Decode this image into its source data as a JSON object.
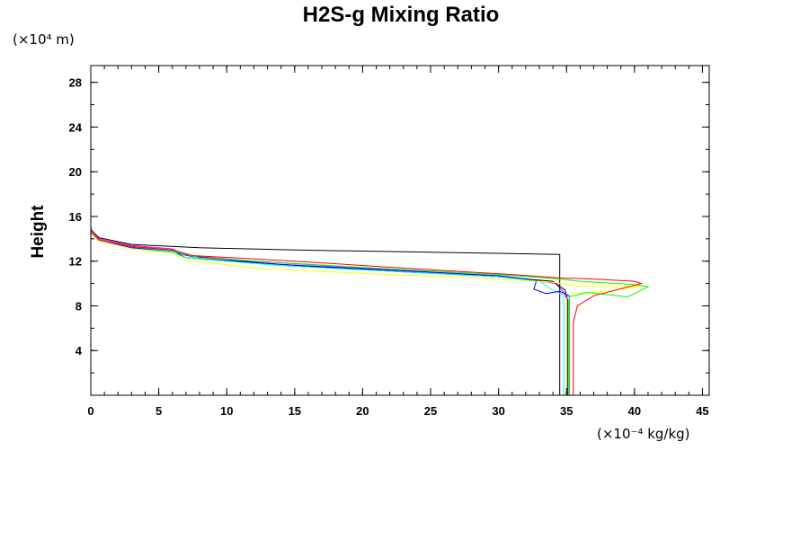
{
  "chart_data": {
    "type": "line",
    "title": "H2S-g Mixing Ratio",
    "ylabel": "Height",
    "xlabel": "",
    "x_unit": "(×10⁻⁴ kg/kg)",
    "y_unit": "(×10⁴ m)",
    "xlim": [
      0,
      45.5
    ],
    "ylim": [
      0,
      29.5
    ],
    "x_ticks": [
      0,
      5,
      10,
      15,
      20,
      25,
      30,
      35,
      40,
      45
    ],
    "x_tick_labels": [
      "0",
      "5",
      "10",
      "15",
      "20",
      "25",
      "30",
      "35",
      "40",
      "45"
    ],
    "y_ticks": [
      4,
      8,
      12,
      16,
      20,
      24,
      28
    ],
    "y_tick_labels": [
      "4",
      "8",
      "12",
      "16",
      "20",
      "24",
      "28"
    ],
    "x_minor_step": 1,
    "y_minor_step": 2,
    "grid": false,
    "legend": "none",
    "series": [
      {
        "color": "#ff00ff",
        "points": [
          [
            0,
            29.5
          ],
          [
            0,
            15.2
          ],
          [
            0.05,
            14.8
          ],
          [
            0.6,
            14.0
          ],
          [
            3,
            13.4
          ],
          [
            6,
            13.1
          ],
          [
            7,
            12.5
          ],
          [
            12,
            12.0
          ],
          [
            20,
            11.4
          ],
          [
            28,
            10.8
          ],
          [
            32,
            10.4
          ],
          [
            34.2,
            10.0
          ],
          [
            34.8,
            9.2
          ],
          [
            35,
            8.6
          ],
          [
            35,
            0
          ]
        ]
      },
      {
        "color": "#000000",
        "points": [
          [
            0,
            14.8
          ],
          [
            0.6,
            14.1
          ],
          [
            3,
            13.5
          ],
          [
            8,
            13.2
          ],
          [
            15,
            13.0
          ],
          [
            25,
            12.8
          ],
          [
            30,
            12.7
          ],
          [
            34.5,
            12.6
          ],
          [
            34.5,
            10.0
          ],
          [
            34.5,
            8.8
          ],
          [
            34.5,
            0
          ]
        ]
      },
      {
        "color": "#000000",
        "points": [
          [
            0,
            14.6
          ],
          [
            0.6,
            13.9
          ],
          [
            3,
            13.3
          ],
          [
            6,
            13.0
          ],
          [
            7,
            12.3
          ],
          [
            14,
            11.7
          ],
          [
            22,
            11.1
          ],
          [
            30,
            10.6
          ],
          [
            34,
            10.2
          ],
          [
            34.9,
            9.4
          ],
          [
            35.1,
            8.5
          ],
          [
            35.1,
            0
          ]
        ]
      },
      {
        "color": "#00ffff",
        "points": [
          [
            0,
            14.5
          ],
          [
            0.6,
            13.8
          ],
          [
            3,
            13.1
          ],
          [
            6,
            12.8
          ],
          [
            7,
            12.3
          ],
          [
            14,
            11.6
          ],
          [
            22,
            11.1
          ],
          [
            30,
            10.6
          ],
          [
            33,
            10.2
          ],
          [
            34,
            9.4
          ],
          [
            34.7,
            9.0
          ],
          [
            34.8,
            8.4
          ],
          [
            34.8,
            0
          ]
        ]
      },
      {
        "color": "#0000ff",
        "points": [
          [
            0,
            14.6
          ],
          [
            0.6,
            13.9
          ],
          [
            3,
            13.2
          ],
          [
            6,
            12.9
          ],
          [
            7.5,
            12.4
          ],
          [
            14,
            11.7
          ],
          [
            22,
            11.2
          ],
          [
            30,
            10.7
          ],
          [
            32.8,
            10.3
          ],
          [
            32.6,
            9.5
          ],
          [
            33.5,
            9.1
          ],
          [
            34.5,
            9.3
          ],
          [
            35.2,
            8.9
          ],
          [
            35.2,
            0
          ]
        ]
      },
      {
        "color": "#ffff00",
        "points": [
          [
            0,
            14.5
          ],
          [
            0.6,
            13.8
          ],
          [
            3,
            13.1
          ],
          [
            6,
            12.7
          ],
          [
            7,
            12.1
          ],
          [
            12,
            11.4
          ],
          [
            20,
            10.9
          ],
          [
            28,
            10.5
          ],
          [
            34,
            10.1
          ],
          [
            35.5,
            9.8
          ],
          [
            39,
            9.7
          ],
          [
            40.6,
            9.8
          ],
          [
            38,
            9.3
          ],
          [
            35.5,
            9.1
          ],
          [
            35,
            8.6
          ],
          [
            35,
            0
          ]
        ]
      },
      {
        "color": "#00ff00",
        "points": [
          [
            0,
            14.6
          ],
          [
            0.6,
            13.9
          ],
          [
            3,
            13.3
          ],
          [
            6,
            12.9
          ],
          [
            8,
            12.3
          ],
          [
            15,
            11.8
          ],
          [
            22,
            11.3
          ],
          [
            30,
            10.8
          ],
          [
            34.5,
            10.4
          ],
          [
            36,
            10.2
          ],
          [
            40,
            9.9
          ],
          [
            41,
            9.7
          ],
          [
            39.5,
            8.8
          ],
          [
            36.5,
            9.2
          ],
          [
            35.2,
            8.8
          ],
          [
            35.2,
            0
          ]
        ]
      },
      {
        "color": "#ff0000",
        "points": [
          [
            0,
            14.6
          ],
          [
            0.6,
            13.9
          ],
          [
            3,
            13.3
          ],
          [
            6,
            13.0
          ],
          [
            7.5,
            12.5
          ],
          [
            15,
            12.0
          ],
          [
            24,
            11.3
          ],
          [
            31,
            10.8
          ],
          [
            34.5,
            10.5
          ],
          [
            37,
            10.4
          ],
          [
            40,
            10.2
          ],
          [
            40.5,
            10.0
          ],
          [
            37,
            8.9
          ],
          [
            35.8,
            8.0
          ],
          [
            35.5,
            6.5
          ],
          [
            35.5,
            0
          ]
        ]
      }
    ]
  }
}
